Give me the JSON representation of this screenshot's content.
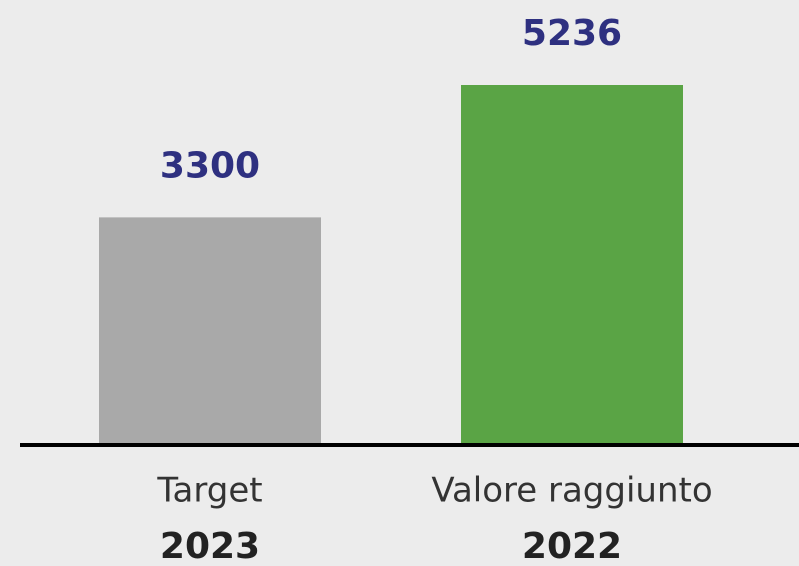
{
  "chart_data": {
    "type": "bar",
    "categories": [
      "Target",
      "Valore raggiunto"
    ],
    "category_sublabels": [
      "2023",
      "2022"
    ],
    "values": [
      3300,
      5236
    ],
    "colors": [
      "#a9a9a9",
      "#5aa445"
    ]
  }
}
